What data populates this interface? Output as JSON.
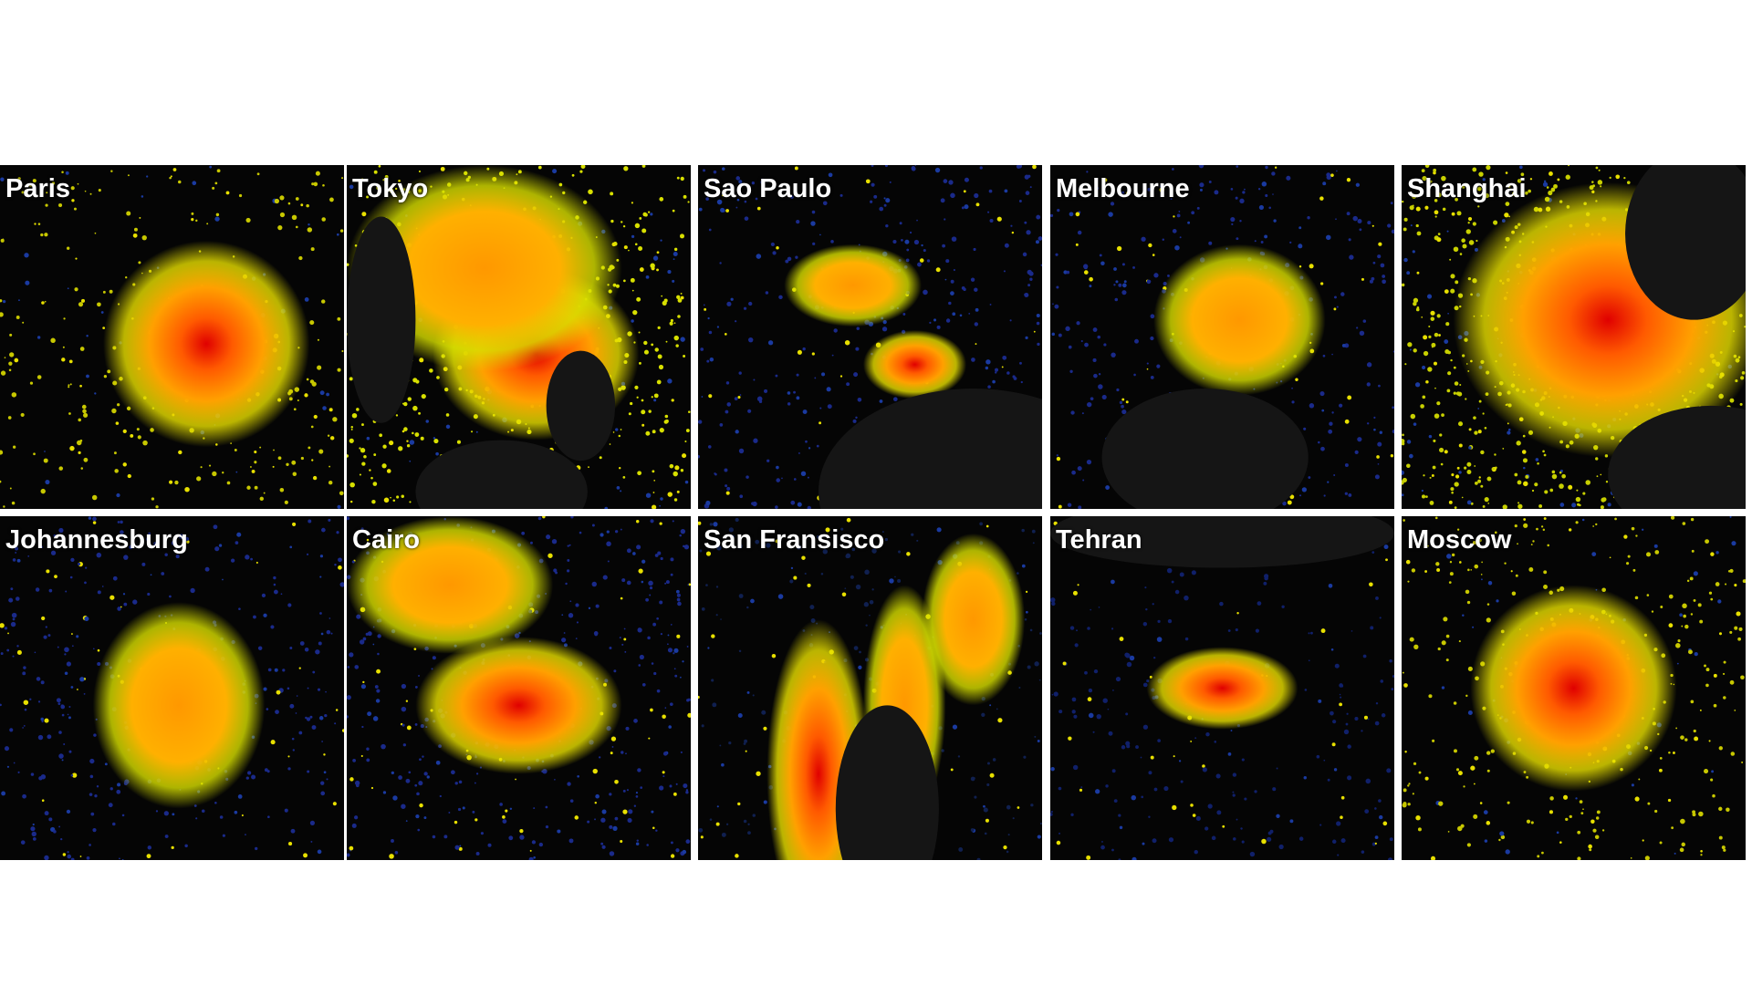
{
  "panels": [
    {
      "label": "Paris"
    },
    {
      "label": "Tokyo"
    },
    {
      "label": "Sao Paulo"
    },
    {
      "label": "Melbourne"
    },
    {
      "label": "Shanghai"
    },
    {
      "label": "Johannesburg"
    },
    {
      "label": "Cairo"
    },
    {
      "label": "San Fransisco"
    },
    {
      "label": "Tehran"
    },
    {
      "label": "Moscow"
    }
  ]
}
